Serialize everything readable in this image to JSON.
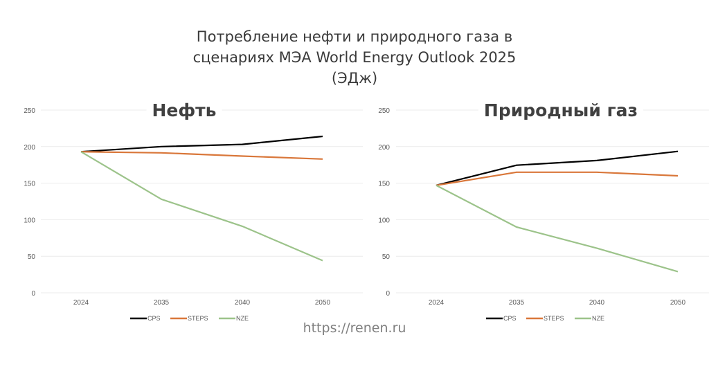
{
  "title_lines": [
    "Потребление нефти и природного газа в",
    "сценариях МЭА World Energy Outlook 2025",
    "(ЭДж)"
  ],
  "source": "https://renen.ru",
  "colors": {
    "CPS": "#000000",
    "STEPS": "#d9773a",
    "NZE": "#9cc38a",
    "grid": "#ebebeb"
  },
  "chart_data": [
    {
      "type": "line",
      "title": "Нефть",
      "categories": [
        "2024",
        "2035",
        "2040",
        "2050"
      ],
      "ylim": [
        0,
        250
      ],
      "yticks": [
        0,
        50,
        100,
        150,
        200,
        250
      ],
      "ytick_labels": [
        "0",
        "50",
        "100",
        "150",
        "200",
        "250"
      ],
      "grid": true,
      "legend": "bottom",
      "series": [
        {
          "name": "CPS",
          "values": [
            193,
            200,
            203,
            214
          ]
        },
        {
          "name": "STEPS",
          "values": [
            193,
            191.5,
            187,
            183
          ]
        },
        {
          "name": "NZE",
          "values": [
            193,
            128,
            91,
            44
          ]
        }
      ]
    },
    {
      "type": "line",
      "title": "Природный газ",
      "categories": [
        "2024",
        "2035",
        "2040",
        "2050"
      ],
      "ylim": [
        0,
        250
      ],
      "yticks": [
        0,
        50,
        100,
        150,
        200,
        250
      ],
      "ytick_labels": [
        "0",
        "50",
        "100",
        "150",
        "200",
        "250"
      ],
      "grid": true,
      "legend": "bottom",
      "series": [
        {
          "name": "CPS",
          "values": [
            147,
            174.5,
            181,
            193.5
          ]
        },
        {
          "name": "STEPS",
          "values": [
            147,
            165,
            165,
            160
          ]
        },
        {
          "name": "NZE",
          "values": [
            147,
            90,
            61,
            29
          ]
        }
      ]
    }
  ]
}
